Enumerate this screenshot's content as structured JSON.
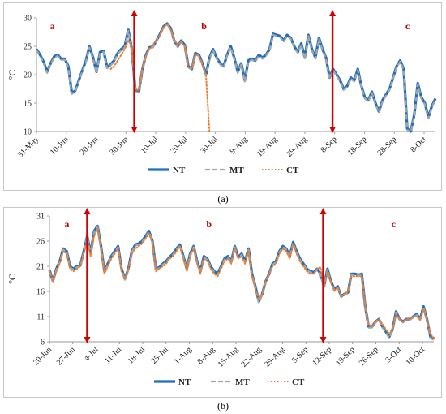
{
  "captions": [
    "(a)",
    "(b)"
  ],
  "chart_data": [
    {
      "type": "line",
      "ylabel": "°C",
      "ylim": [
        10,
        30
      ],
      "yticks": [
        10,
        15,
        20,
        25,
        30
      ],
      "xticks": [
        "31-May",
        "10-Jun",
        "20-Jun",
        "30-Jun",
        "10-Jul",
        "20-Jul",
        "30-Jul",
        "9-Aug",
        "19-Aug",
        "29-Aug",
        "8-Sep",
        "18-Sep",
        "28-Sep",
        "8-Oct"
      ],
      "x_range": [
        0,
        134
      ],
      "regions": [
        "a",
        "b",
        "c"
      ],
      "series": [
        {
          "name": "NT",
          "color": "#1f6fbf",
          "style": "solid",
          "values": [
            24.5,
            23.5,
            22.3,
            20.5,
            22.0,
            23.2,
            23.5,
            22.8,
            22.8,
            21.5,
            16.8,
            17.2,
            19.0,
            20.8,
            22.5,
            25.0,
            23.0,
            20.5,
            24.0,
            24.2,
            21.3,
            21.8,
            22.5,
            23.8,
            24.5,
            25.0,
            27.9,
            24.5,
            17.2,
            17.0,
            21.0,
            23.5,
            24.8,
            25.0,
            26.0,
            27.2,
            28.5,
            29.0,
            28.2,
            26.0,
            25.0,
            26.0,
            25.2,
            21.5,
            21.0,
            23.8,
            23.5,
            22.0,
            20.0,
            23.0,
            24.5,
            23.0,
            22.0,
            21.5,
            23.5,
            25.0,
            23.0,
            20.5,
            22.0,
            19.0,
            22.5,
            22.8,
            22.5,
            23.5,
            23.0,
            23.5,
            24.5,
            27.2,
            27.0,
            26.8,
            26.0,
            27.0,
            26.5,
            25.0,
            24.0,
            25.5,
            23.0,
            27.0,
            24.5,
            23.0,
            26.5,
            24.5,
            23.0,
            19.5,
            21.0,
            20.0,
            19.0,
            17.5,
            18.0,
            19.5,
            19.0,
            21.0,
            18.0,
            16.0,
            15.5,
            17.0,
            15.0,
            13.5,
            15.5,
            16.5,
            17.5,
            19.5,
            21.5,
            22.5,
            21.0,
            10.5,
            10.0,
            13.0,
            18.5,
            16.0,
            15.0,
            12.5,
            14.5,
            15.8
          ]
        },
        {
          "name": "MT",
          "color": "#a6a6a6",
          "style": "dash",
          "values": [
            24.3,
            23.3,
            22.1,
            20.3,
            21.8,
            23.0,
            23.3,
            22.6,
            22.6,
            21.3,
            16.6,
            17.0,
            18.8,
            20.6,
            22.3,
            24.8,
            22.8,
            20.3,
            23.8,
            24.0,
            21.1,
            21.6,
            22.3,
            23.6,
            24.3,
            24.8,
            27.7,
            24.3,
            17.0,
            16.8,
            20.8,
            23.3,
            24.6,
            24.8,
            25.8,
            27.0,
            28.3,
            28.8,
            28.0,
            25.8,
            24.8,
            25.8,
            25.0,
            21.3,
            20.8,
            23.6,
            23.3,
            21.8,
            19.8,
            22.8,
            24.3,
            22.8,
            21.8,
            21.3,
            23.3,
            24.8,
            22.8,
            20.3,
            21.8,
            18.8,
            22.3,
            22.6,
            22.3,
            23.3,
            22.8,
            23.3,
            24.3,
            27.0,
            26.8,
            26.6,
            25.8,
            26.8,
            26.3,
            24.8,
            23.8,
            25.3,
            22.8,
            26.8,
            24.3,
            22.8,
            26.3,
            24.3,
            22.8,
            19.3,
            20.8,
            19.8,
            18.8,
            17.3,
            17.8,
            19.3,
            18.8,
            20.8,
            17.8,
            15.8,
            15.3,
            16.8,
            14.8,
            13.3,
            15.3,
            16.3,
            17.3,
            19.3,
            21.3,
            22.3,
            20.8,
            10.3,
            9.8,
            12.8,
            18.3,
            15.8,
            14.8,
            12.3,
            14.3,
            15.6
          ]
        },
        {
          "name": "CT",
          "color": "#ed7d31",
          "style": "dot",
          "values": [
            null,
            null,
            null,
            null,
            null,
            null,
            null,
            null,
            null,
            null,
            null,
            null,
            null,
            null,
            null,
            null,
            null,
            null,
            null,
            null,
            null,
            21.0,
            21.5,
            22.5,
            23.5,
            24.5,
            26.0,
            25.0,
            17.5,
            17.2,
            21.2,
            23.3,
            24.6,
            25.2,
            26.2,
            27.0,
            28.3,
            29.0,
            28.0,
            26.2,
            25.2,
            25.8,
            25.0,
            21.3,
            21.2,
            23.6,
            23.2,
            21.8,
            19.8,
            10.0
          ]
        }
      ]
    },
    {
      "type": "line",
      "ylabel": "°C",
      "ylim": [
        6,
        31
      ],
      "yticks": [
        6,
        11,
        16,
        21,
        26,
        31
      ],
      "xticks": [
        "20-Jun",
        "27-Jun",
        "4-Jul",
        "11-Jul",
        "18-Jul",
        "25-Jul",
        "1-Aug",
        "8-Aug",
        "15-Aug",
        "22-Aug",
        "29-Aug",
        "5-Sep",
        "12-Sep",
        "19-Sep",
        "26-Sep",
        "3-Oct",
        "10-Oct"
      ],
      "x_range": [
        0,
        115
      ],
      "regions": [
        "a",
        "b",
        "c"
      ],
      "series": [
        {
          "name": "NT",
          "color": "#1f6fbf",
          "style": "solid",
          "values": [
            20.3,
            18.0,
            20.5,
            22.0,
            24.5,
            24.0,
            21.0,
            20.5,
            21.0,
            21.2,
            24.0,
            27.0,
            23.5,
            28.0,
            29.0,
            25.0,
            20.0,
            21.5,
            23.0,
            24.0,
            25.0,
            20.5,
            18.5,
            20.5,
            24.0,
            25.3,
            25.5,
            26.0,
            27.0,
            28.0,
            26.0,
            20.5,
            20.8,
            21.5,
            22.0,
            22.8,
            23.5,
            24.5,
            25.3,
            23.0,
            20.5,
            23.5,
            25.0,
            22.0,
            20.0,
            23.0,
            22.5,
            21.0,
            20.0,
            19.5,
            21.0,
            22.5,
            23.0,
            22.0,
            25.0,
            22.8,
            23.5,
            22.0,
            24.5,
            19.5,
            17.0,
            14.0,
            15.5,
            18.0,
            19.5,
            21.5,
            22.0,
            24.0,
            25.0,
            24.5,
            23.0,
            25.8,
            24.0,
            22.5,
            21.5,
            20.5,
            20.0,
            19.8,
            20.5,
            19.5,
            17.0,
            20.5,
            18.0,
            16.5,
            17.0,
            15.0,
            15.5,
            15.8,
            19.5,
            19.5,
            19.3,
            19.5,
            13.0,
            9.0,
            9.0,
            10.0,
            10.5,
            9.0,
            8.0,
            7.0,
            8.5,
            12.0,
            10.5,
            10.0,
            10.5,
            10.5,
            11.0,
            11.5,
            10.5,
            13.0,
            10.5,
            7.0,
            6.5
          ]
        },
        {
          "name": "MT",
          "color": "#a6a6a6",
          "style": "dash",
          "values": [
            20.1,
            17.8,
            20.3,
            21.8,
            24.3,
            23.8,
            20.8,
            20.3,
            20.8,
            21.0,
            23.8,
            26.8,
            23.3,
            27.8,
            28.8,
            24.8,
            19.8,
            21.3,
            22.8,
            23.8,
            24.8,
            20.3,
            18.3,
            20.3,
            23.8,
            25.1,
            25.3,
            25.8,
            26.8,
            27.8,
            25.8,
            20.3,
            20.6,
            21.3,
            21.8,
            22.6,
            23.3,
            24.3,
            25.1,
            22.8,
            20.3,
            23.3,
            24.8,
            21.8,
            19.8,
            22.8,
            22.3,
            20.8,
            19.8,
            19.3,
            20.8,
            22.3,
            22.8,
            21.8,
            24.8,
            22.6,
            23.3,
            21.8,
            24.3,
            19.3,
            16.8,
            13.8,
            15.3,
            17.8,
            19.3,
            21.3,
            21.8,
            23.8,
            24.8,
            24.3,
            22.8,
            25.6,
            23.8,
            22.3,
            21.3,
            20.3,
            19.8,
            19.6,
            20.3,
            19.3,
            16.8,
            20.3,
            17.8,
            16.3,
            16.8,
            14.8,
            15.3,
            15.6,
            19.3,
            19.3,
            19.1,
            19.3,
            12.8,
            8.8,
            8.8,
            9.8,
            10.3,
            8.8,
            7.8,
            6.8,
            8.3,
            11.8,
            10.3,
            9.8,
            10.3,
            10.3,
            10.8,
            11.3,
            10.3,
            12.8,
            10.3,
            6.8,
            6.3
          ]
        },
        {
          "name": "CT",
          "color": "#ed7d31",
          "style": "dot",
          "values": [
            20.0,
            18.2,
            20.0,
            21.5,
            24.0,
            23.5,
            20.5,
            20.0,
            20.5,
            21.0,
            23.5,
            26.0,
            23.0,
            27.0,
            28.5,
            24.5,
            19.5,
            21.0,
            22.5,
            23.5,
            24.5,
            20.0,
            18.5,
            20.5,
            23.5,
            24.5,
            25.0,
            25.5,
            26.5,
            27.5,
            25.5,
            20.0,
            20.5,
            21.0,
            21.5,
            22.5,
            23.0,
            24.0,
            25.0,
            22.5,
            20.0,
            23.0,
            24.5,
            21.5,
            19.5,
            22.5,
            22.0,
            20.5,
            19.5,
            19.0,
            20.5,
            22.0,
            22.5,
            21.5,
            24.5,
            22.5,
            23.0,
            21.5,
            24.0,
            19.0,
            16.5,
            14.5,
            15.5,
            18.0,
            19.5,
            21.0,
            21.5,
            23.5,
            24.5,
            24.0,
            22.5,
            25.5,
            23.5,
            22.0,
            21.0,
            20.0,
            19.5,
            19.5,
            20.5,
            20.8,
            17.0,
            20.0,
            18.0,
            16.0,
            17.0,
            15.0,
            15.5,
            16.0,
            19.0,
            19.0,
            19.0,
            19.0,
            13.0,
            9.5,
            9.0,
            10.0,
            10.5,
            9.5,
            8.5,
            7.5,
            8.5,
            11.5,
            10.5,
            10.0,
            10.5,
            10.5,
            11.0,
            11.0,
            10.5,
            12.5,
            10.5,
            7.5,
            6.8
          ]
        }
      ]
    }
  ]
}
